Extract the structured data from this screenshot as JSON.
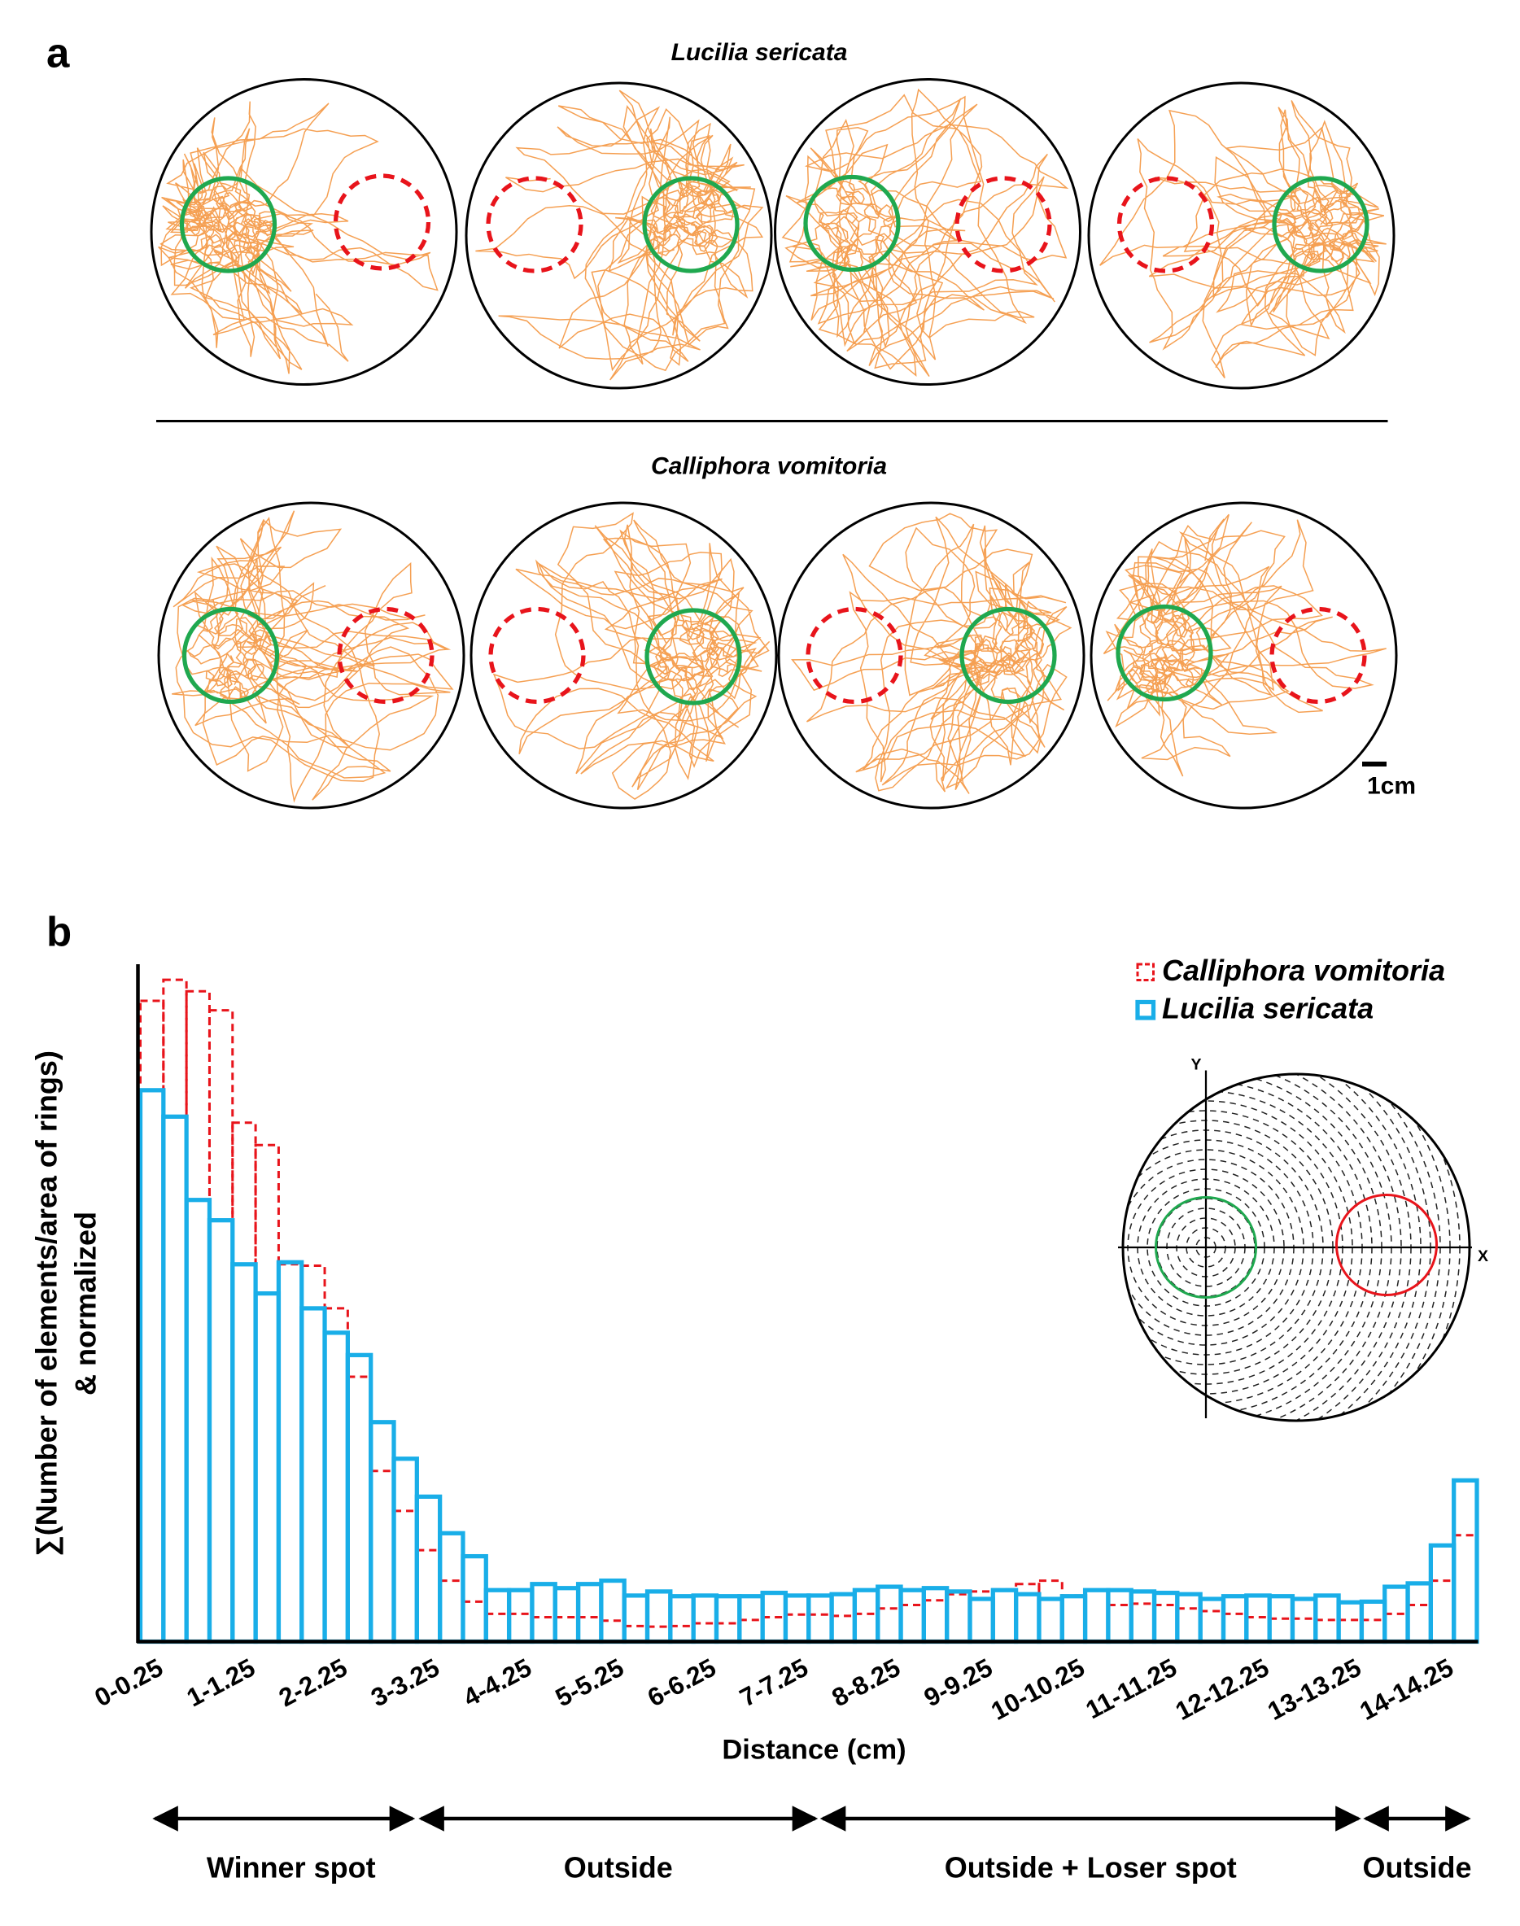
{
  "panel_a": {
    "label": "a",
    "rows": [
      {
        "title": "Lucilia sericata"
      },
      {
        "title": "Calliphora vomitoria"
      }
    ],
    "scale_bar": "1cm"
  },
  "chart_data": {
    "type": "bar",
    "panel_label": "b",
    "xlabel": "Distance (cm)",
    "ylabel": [
      "∑(Number of elements/area of rings)",
      "& normalized"
    ],
    "categories": [
      "0-0.25",
      null,
      null,
      null,
      "1-1.25",
      null,
      null,
      null,
      "2-2.25",
      null,
      null,
      null,
      "3-3.25",
      null,
      null,
      null,
      "4-4.25",
      null,
      null,
      null,
      "5-5.25",
      null,
      null,
      null,
      "6-6.25",
      null,
      null,
      null,
      "7-7.25",
      null,
      null,
      null,
      "8-8.25",
      null,
      null,
      null,
      "9-9.25",
      null,
      null,
      null,
      "10-10.25",
      null,
      null,
      null,
      "11-11.25",
      null,
      null,
      null,
      "12-12.25",
      null,
      null,
      null,
      "13-13.25",
      null,
      null,
      null,
      "14-14.25",
      null
    ],
    "series": [
      {
        "name": "Calliphora vomitoria",
        "color": "#e8141b",
        "line_style": "dashed",
        "values": [
          94.6,
          97.7,
          96.0,
          93.2,
          76.6,
          73.3,
          55.7,
          55.5,
          49.2,
          39.1,
          25.2,
          19.3,
          13.5,
          9.0,
          5.9,
          4.1,
          4.1,
          3.6,
          3.6,
          3.6,
          3.1,
          2.3,
          2.2,
          2.3,
          2.7,
          2.7,
          3.2,
          3.6,
          4.0,
          4.0,
          3.8,
          4.1,
          4.9,
          5.4,
          6.1,
          7.0,
          7.4,
          7.7,
          8.5,
          9.0,
          6.8,
          7.6,
          5.4,
          5.6,
          5.4,
          4.9,
          4.5,
          4.1,
          3.6,
          3.4,
          3.4,
          3.2,
          3.2,
          3.2,
          4.1,
          5.4,
          9.0,
          15.7
        ]
      },
      {
        "name": "Lucilia sericata",
        "color": "#19aee8",
        "line_style": "solid",
        "values": [
          81.4,
          77.5,
          65.2,
          62.2,
          55.7,
          51.4,
          56.0,
          49.2,
          45.6,
          42.3,
          32.4,
          27.0,
          21.4,
          16.0,
          12.6,
          7.6,
          7.6,
          8.5,
          7.9,
          8.5,
          9.0,
          6.8,
          7.4,
          6.7,
          6.8,
          6.7,
          6.7,
          7.2,
          6.8,
          6.8,
          7.0,
          7.6,
          8.1,
          7.6,
          7.9,
          7.4,
          6.3,
          7.6,
          7.0,
          6.3,
          6.7,
          7.6,
          7.6,
          7.4,
          7.2,
          7.0,
          6.3,
          6.7,
          6.8,
          6.7,
          6.3,
          6.8,
          5.8,
          5.9,
          8.1,
          8.6,
          14.2,
          23.8
        ]
      }
    ],
    "ylim": [
      0,
      100
    ],
    "legend": "top-right",
    "inset": {
      "x_label": "X",
      "y_label": "Y"
    },
    "annotations": [
      "Winner spot",
      "Outside",
      "Outside + Loser spot",
      "Outside"
    ]
  }
}
